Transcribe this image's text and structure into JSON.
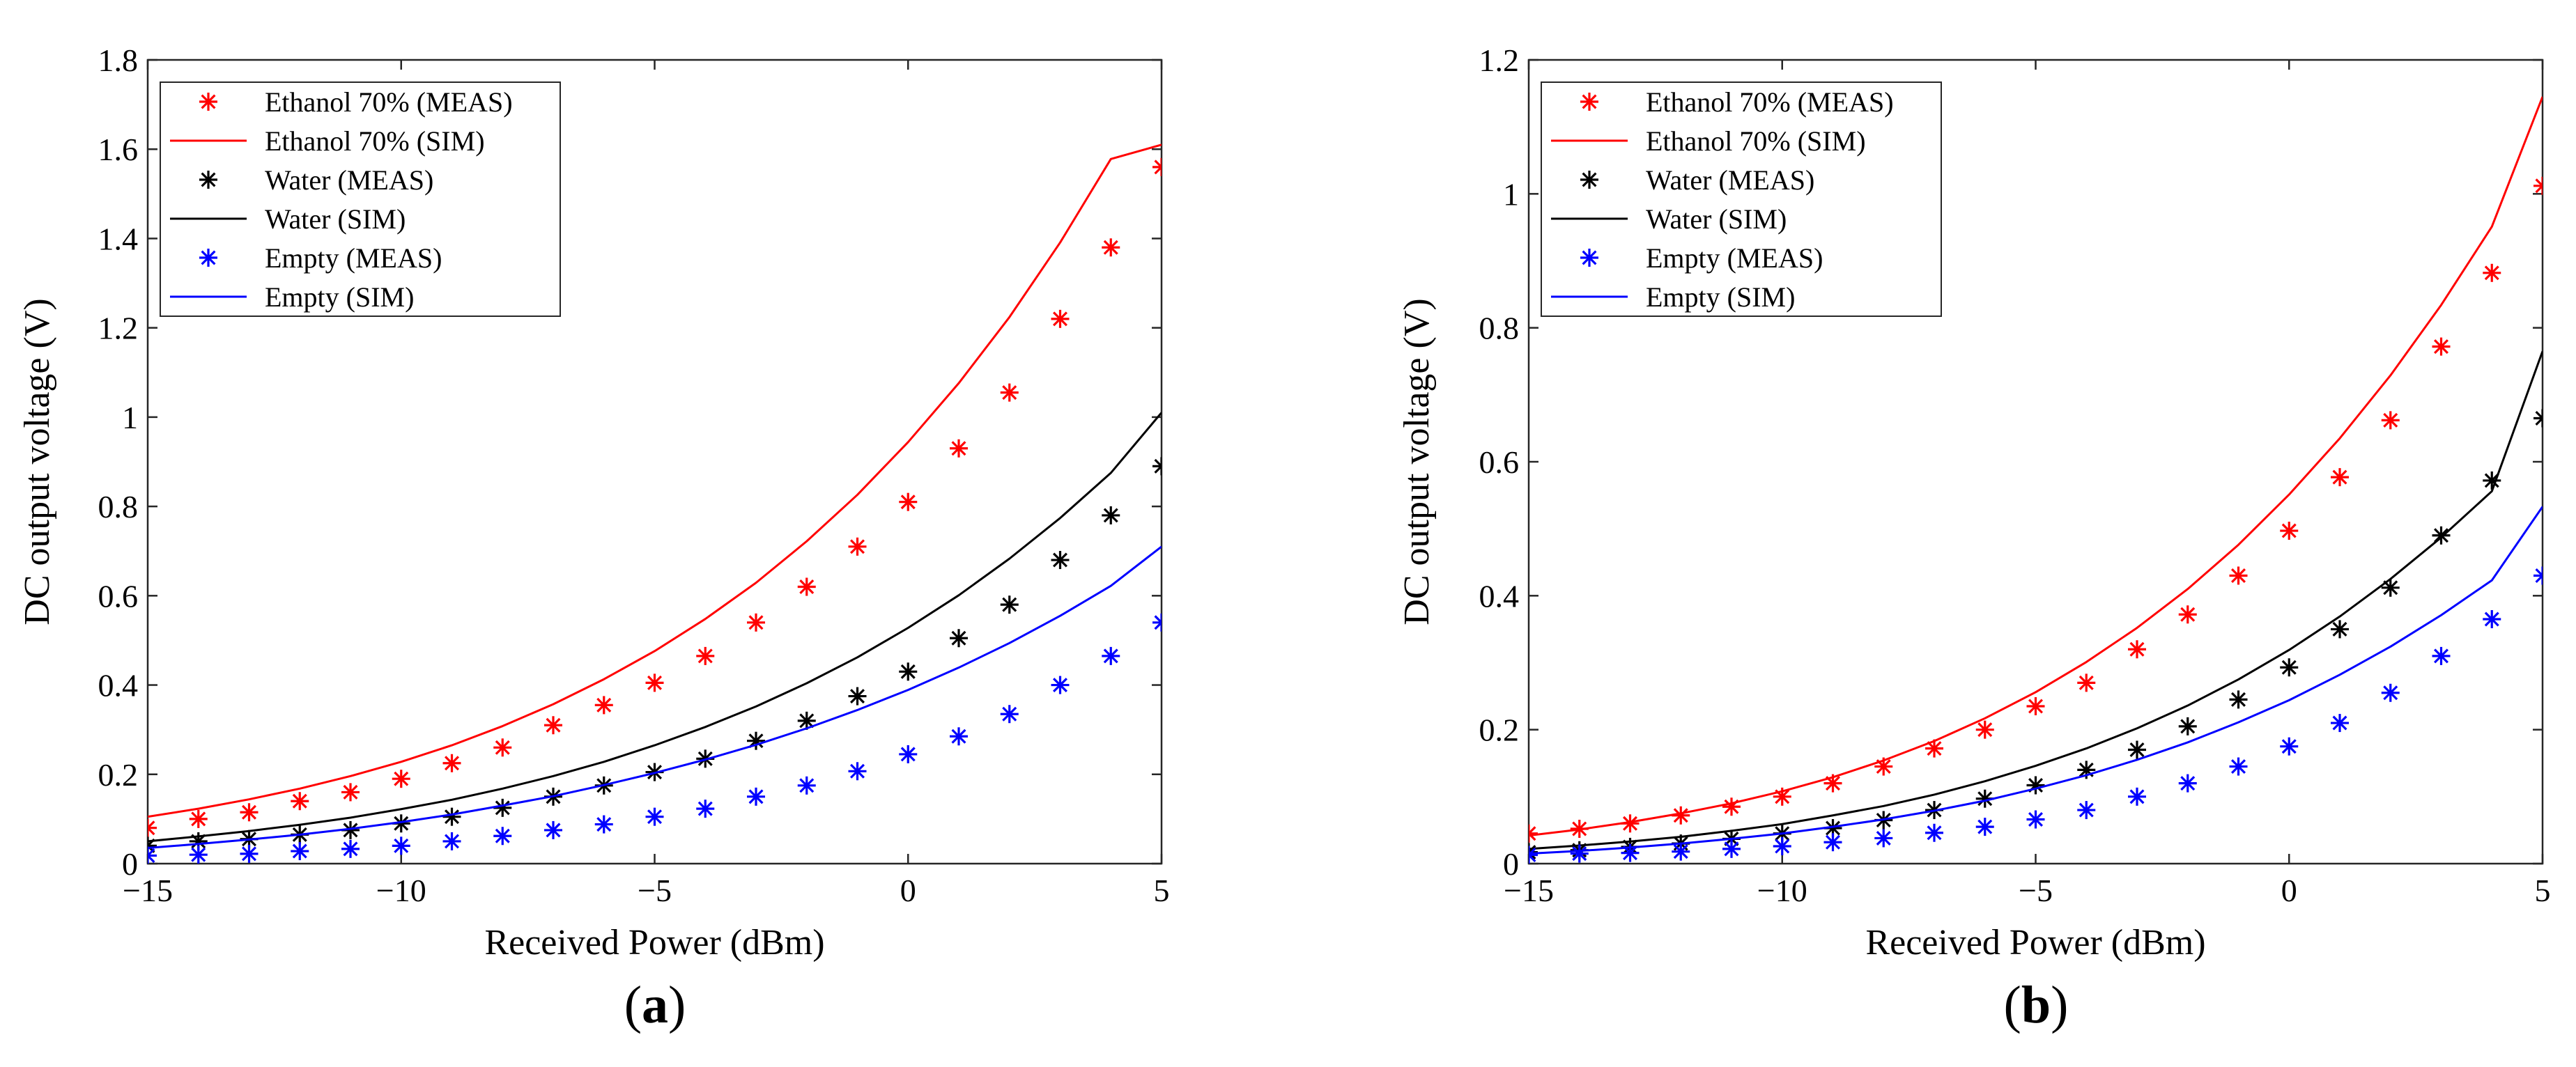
{
  "colors": {
    "ethanol": "#ff0000",
    "water": "#000000",
    "empty": "#0000ff"
  },
  "chart_data": [
    {
      "type": "scatter",
      "panel_label": "a",
      "xlabel": "Received Power (dBm)",
      "ylabel": "DC output voltage (V)",
      "xlim": [
        -15,
        5
      ],
      "ylim": [
        0,
        1.8
      ],
      "xticks": [
        -15,
        -10,
        -5,
        0,
        5
      ],
      "yticks": [
        0,
        0.2,
        0.4,
        0.6,
        0.8,
        1,
        1.2,
        1.4,
        1.6,
        1.8
      ],
      "grid": false,
      "legend_position": "top-left",
      "x": [
        -15,
        -14,
        -13,
        -12,
        -11,
        -10,
        -9,
        -8,
        -7,
        -6,
        -5,
        -4,
        -3,
        -2,
        -1,
        0,
        1,
        2,
        3,
        4,
        5
      ],
      "series": [
        {
          "name": "Ethanol 70% (MEAS)",
          "kind": "marker",
          "color_key": "ethanol",
          "values": [
            0.08,
            0.1,
            0.115,
            0.14,
            0.16,
            0.19,
            0.225,
            0.26,
            0.31,
            0.355,
            0.405,
            0.465,
            0.54,
            0.62,
            0.71,
            0.81,
            0.93,
            1.055,
            1.22,
            1.38,
            1.56
          ]
        },
        {
          "name": "Ethanol 70% (SIM)",
          "kind": "line",
          "color_key": "ethanol",
          "values": [
            0.105,
            0.123,
            0.144,
            0.168,
            0.196,
            0.228,
            0.265,
            0.308,
            0.357,
            0.413,
            0.476,
            0.548,
            0.629,
            0.722,
            0.826,
            0.944,
            1.076,
            1.224,
            1.391,
            1.578,
            1.61
          ]
        },
        {
          "name": "Water (MEAS)",
          "kind": "marker",
          "color_key": "water",
          "values": [
            0.04,
            0.05,
            0.055,
            0.065,
            0.075,
            0.09,
            0.105,
            0.125,
            0.15,
            0.175,
            0.205,
            0.235,
            0.275,
            0.32,
            0.375,
            0.43,
            0.505,
            0.58,
            0.68,
            0.78,
            0.89
          ]
        },
        {
          "name": "Water (SIM)",
          "kind": "line",
          "color_key": "water",
          "values": [
            0.05,
            0.061,
            0.073,
            0.087,
            0.103,
            0.122,
            0.143,
            0.168,
            0.196,
            0.228,
            0.265,
            0.306,
            0.352,
            0.404,
            0.462,
            0.528,
            0.601,
            0.683,
            0.774,
            0.875,
            1.01
          ]
        },
        {
          "name": "Empty (MEAS)",
          "kind": "marker",
          "color_key": "empty",
          "values": [
            0.018,
            0.02,
            0.022,
            0.028,
            0.033,
            0.04,
            0.05,
            0.062,
            0.075,
            0.088,
            0.105,
            0.123,
            0.15,
            0.175,
            0.207,
            0.245,
            0.285,
            0.335,
            0.4,
            0.465,
            0.54
          ]
        },
        {
          "name": "Empty (SIM)",
          "kind": "line",
          "color_key": "empty",
          "values": [
            0.035,
            0.044,
            0.054,
            0.065,
            0.078,
            0.093,
            0.11,
            0.13,
            0.151,
            0.176,
            0.203,
            0.233,
            0.266,
            0.303,
            0.344,
            0.389,
            0.439,
            0.494,
            0.555,
            0.622,
            0.71
          ]
        }
      ]
    },
    {
      "type": "scatter",
      "panel_label": "b",
      "xlabel": "Received Power (dBm)",
      "ylabel": "DC output voltage (V)",
      "xlim": [
        -15,
        5
      ],
      "ylim": [
        0,
        1.2
      ],
      "xticks": [
        -15,
        -10,
        -5,
        0,
        5
      ],
      "yticks": [
        0,
        0.2,
        0.4,
        0.6,
        0.8,
        1,
        1.2
      ],
      "grid": false,
      "legend_position": "top-left",
      "x": [
        -15,
        -14,
        -13,
        -12,
        -11,
        -10,
        -9,
        -8,
        -7,
        -6,
        -5,
        -4,
        -3,
        -2,
        -1,
        0,
        1,
        2,
        3,
        4,
        5
      ],
      "series": [
        {
          "name": "Ethanol 70% (MEAS)",
          "kind": "marker",
          "color_key": "ethanol",
          "values": [
            0.045,
            0.052,
            0.06,
            0.072,
            0.085,
            0.1,
            0.12,
            0.145,
            0.172,
            0.2,
            0.235,
            0.27,
            0.32,
            0.372,
            0.43,
            0.497,
            0.577,
            0.662,
            0.772,
            0.882,
            1.012
          ]
        },
        {
          "name": "Ethanol 70% (SIM)",
          "kind": "line",
          "color_key": "ethanol",
          "values": [
            0.042,
            0.051,
            0.062,
            0.075,
            0.09,
            0.108,
            0.129,
            0.154,
            0.183,
            0.217,
            0.256,
            0.301,
            0.352,
            0.41,
            0.476,
            0.551,
            0.635,
            0.729,
            0.834,
            0.951,
            1.145
          ]
        },
        {
          "name": "Water (MEAS)",
          "kind": "marker",
          "color_key": "water",
          "values": [
            0.017,
            0.02,
            0.025,
            0.03,
            0.037,
            0.045,
            0.053,
            0.065,
            0.08,
            0.097,
            0.117,
            0.14,
            0.17,
            0.205,
            0.245,
            0.293,
            0.35,
            0.412,
            0.49,
            0.572,
            0.665
          ]
        },
        {
          "name": "Water (SIM)",
          "kind": "line",
          "color_key": "water",
          "values": [
            0.022,
            0.027,
            0.033,
            0.04,
            0.049,
            0.059,
            0.072,
            0.086,
            0.103,
            0.123,
            0.146,
            0.172,
            0.202,
            0.236,
            0.275,
            0.319,
            0.369,
            0.425,
            0.487,
            0.556,
            0.765
          ]
        },
        {
          "name": "Empty (MEAS)",
          "kind": "marker",
          "color_key": "empty",
          "values": [
            0.013,
            0.015,
            0.016,
            0.018,
            0.022,
            0.026,
            0.032,
            0.038,
            0.046,
            0.055,
            0.066,
            0.08,
            0.1,
            0.12,
            0.145,
            0.175,
            0.21,
            0.255,
            0.31,
            0.365,
            0.43
          ]
        },
        {
          "name": "Empty (SIM)",
          "kind": "line",
          "color_key": "empty",
          "values": [
            0.015,
            0.019,
            0.024,
            0.03,
            0.037,
            0.045,
            0.055,
            0.066,
            0.079,
            0.094,
            0.112,
            0.132,
            0.155,
            0.181,
            0.211,
            0.244,
            0.282,
            0.324,
            0.371,
            0.423,
            0.533
          ]
        }
      ]
    }
  ]
}
